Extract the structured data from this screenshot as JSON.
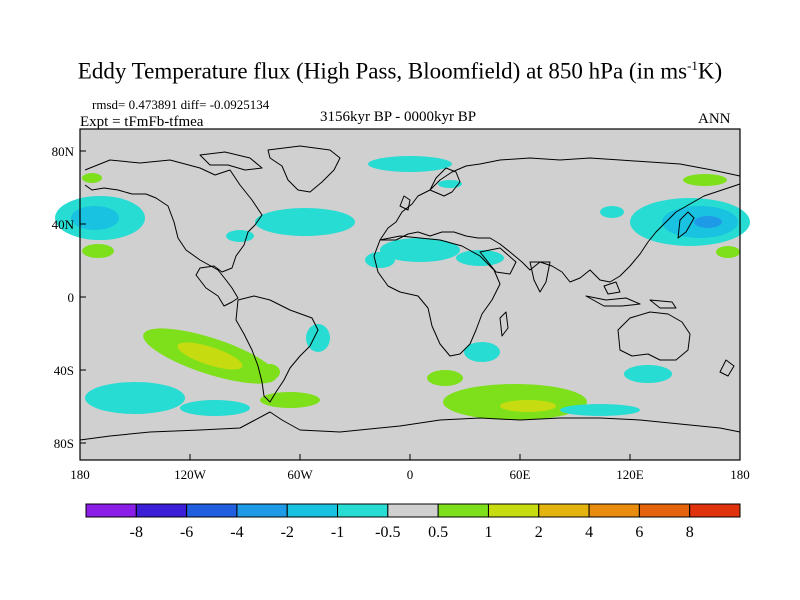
{
  "title": "Eddy Temperature flux (High Pass, Bloomfield) at 850 hPa (in ms",
  "title_sup": "-1",
  "title_end": "K)",
  "stats": "rmsd= 0.473891  diff= -0.0925134",
  "expt": "Expt = tFmFb-tfmea",
  "period": "3156kyr BP - 0000kyr BP",
  "season": "ANN",
  "lat_ticks": [
    "80N",
    "40N",
    "0",
    "40S",
    "80S"
  ],
  "lon_ticks": [
    "180",
    "120W",
    "60W",
    "0",
    "60E",
    "120E",
    "180"
  ],
  "colorbar": {
    "labels": [
      "-8",
      "-6",
      "-4",
      "-2",
      "-1",
      "-0.5",
      "0.5",
      "1",
      "2",
      "4",
      "6",
      "8"
    ],
    "colors": [
      "#8a1ee6",
      "#3c20d8",
      "#1f5fe0",
      "#1f9ae6",
      "#18c2e0",
      "#27dcd2",
      "#d0d0d0",
      "#7ee01a",
      "#c7dc10",
      "#e4b40e",
      "#e88c0e",
      "#e4640e",
      "#e0320c"
    ]
  },
  "colors": {
    "ocean": "#d0d0d0",
    "cyan_light": "#27dcd2",
    "cyan": "#18c2e0",
    "blue": "#1f9ae6",
    "green": "#7ee01a",
    "yellow": "#c7dc10"
  }
}
